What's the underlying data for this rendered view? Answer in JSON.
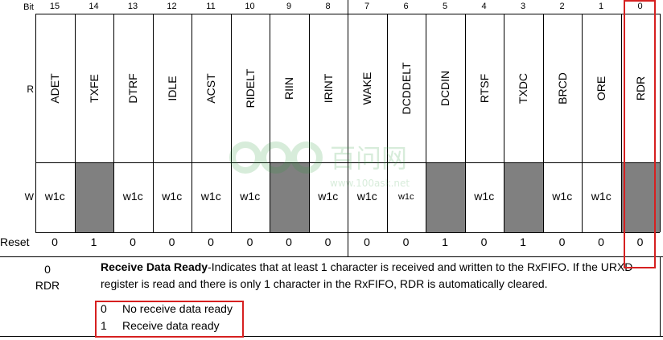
{
  "header": {
    "bit_label": "Bit",
    "r_label": "R",
    "w_label": "W",
    "reset_label": "Reset"
  },
  "bits": [
    {
      "num": "15",
      "name": "ADET",
      "w": "w1c",
      "reset": "0"
    },
    {
      "num": "14",
      "name": "TXFE",
      "w": "",
      "reset": "1"
    },
    {
      "num": "13",
      "name": "DTRF",
      "w": "w1c",
      "reset": "0"
    },
    {
      "num": "12",
      "name": "IDLE",
      "w": "w1c",
      "reset": "0"
    },
    {
      "num": "11",
      "name": "ACST",
      "w": "w1c",
      "reset": "0"
    },
    {
      "num": "10",
      "name": "RIDELT",
      "w": "w1c",
      "reset": "0"
    },
    {
      "num": "9",
      "name": "RIIN",
      "w": "",
      "reset": "0"
    },
    {
      "num": "8",
      "name": "IRINT",
      "w": "w1c",
      "reset": "0"
    },
    {
      "num": "7",
      "name": "WAKE",
      "w": "w1c",
      "reset": "0"
    },
    {
      "num": "6",
      "name": "DCDDELT",
      "w": "w1c",
      "reset": "0"
    },
    {
      "num": "5",
      "name": "DCDIN",
      "w": "",
      "reset": "1"
    },
    {
      "num": "4",
      "name": "RTSF",
      "w": "w1c",
      "reset": "0"
    },
    {
      "num": "3",
      "name": "TXDC",
      "w": "",
      "reset": "1"
    },
    {
      "num": "2",
      "name": "BRCD",
      "w": "w1c",
      "reset": "0"
    },
    {
      "num": "1",
      "name": "ORE",
      "w": "w1c",
      "reset": "0"
    },
    {
      "num": "0",
      "name": "RDR",
      "w": "",
      "reset": "0"
    }
  ],
  "field": {
    "bit": "0",
    "name": "RDR",
    "title": "Receive Data Ready",
    "description": "-Indicates that at least 1 character is received and written to the RxFIFO. If the URXD register is read and there is only 1 character in the RxFIFO, RDR is automatically cleared.",
    "values": [
      {
        "code": "0",
        "meaning": "No receive data ready"
      },
      {
        "code": "1",
        "meaning": "Receive data ready"
      }
    ]
  },
  "watermark": {
    "text": "百问网",
    "url": "www.100ask.net"
  },
  "colors": {
    "reserved_fill": "#808080",
    "highlight": "#d62020"
  }
}
